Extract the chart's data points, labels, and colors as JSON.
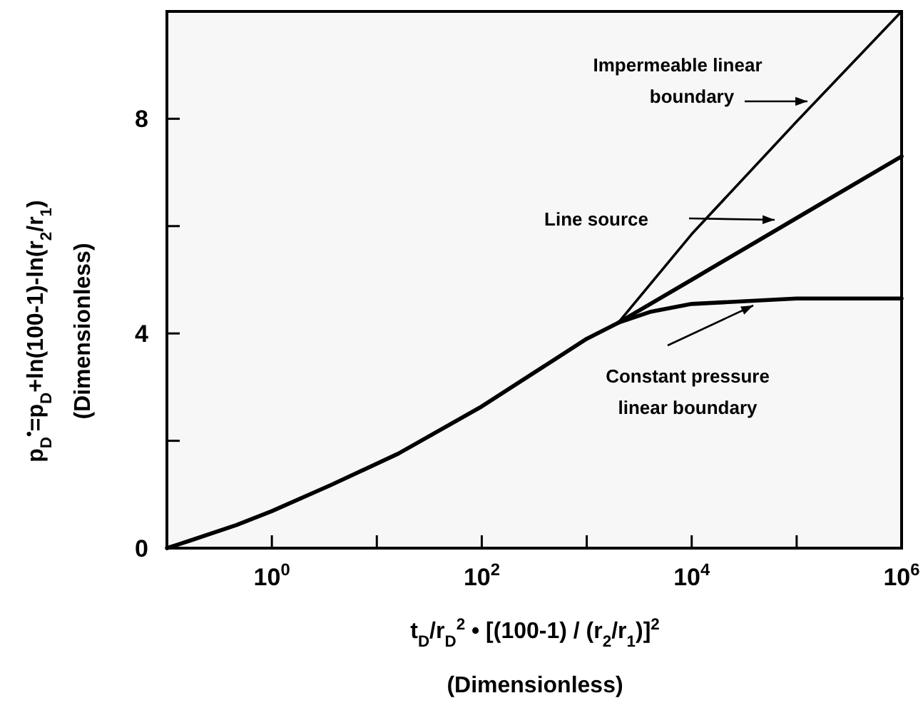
{
  "chart_data": {
    "type": "line",
    "xlabel": "t$_{D}$/r$_{D}$$^{2}$ • [(100-1) / (r$_{2}$/r$_{1}$)]$^{2}$\n(Dimensionless)",
    "ylabel": "p$_{D}$$^{•}$=p$_{D}$+ln(100-1)-ln(r$_{2}$/r$_{1}$)\n(Dimensionless)",
    "log": "x",
    "grid": false,
    "line_style": "solid",
    "xlim": [
      0.1,
      1000000
    ],
    "ylim": [
      0,
      10
    ],
    "xticks": [
      {
        "value": 1,
        "label": "10$^{0}$"
      },
      {
        "value": 10,
        "label": null
      },
      {
        "value": 100,
        "label": "10$^{2}$"
      },
      {
        "value": 1000,
        "label": null
      },
      {
        "value": 10000,
        "label": "10$^{4}$"
      },
      {
        "value": 100000,
        "label": null
      },
      {
        "value": 1000000,
        "label": "10$^{6}$"
      }
    ],
    "yticks": [
      0,
      {
        "value": 2,
        "label": null
      },
      4,
      {
        "value": 6,
        "label": null
      },
      8
    ],
    "series": [
      {
        "name": "Line source",
        "color": "#000000",
        "x": [
          0.1,
          0.16,
          0.46,
          1,
          3.6,
          16,
          100,
          1000,
          2000,
          10000,
          100000,
          1000000
        ],
        "values": [
          0,
          0.13,
          0.43,
          0.69,
          1.17,
          1.76,
          2.64,
          3.9,
          4.2,
          5.0,
          6.15,
          7.3
        ]
      },
      {
        "name": "Impermeable linear\nboundary",
        "color": "#000000",
        "x": [
          2000,
          10000,
          100000,
          1000000
        ],
        "values": [
          4.2,
          5.85,
          7.95,
          10
        ]
      },
      {
        "name": "Constant pressure\nlinear boundary",
        "color": "#000000",
        "x": [
          2000,
          4000,
          10000,
          100000,
          1000000
        ],
        "values": [
          4.2,
          4.4,
          4.55,
          4.65,
          4.65
        ]
      }
    ]
  }
}
